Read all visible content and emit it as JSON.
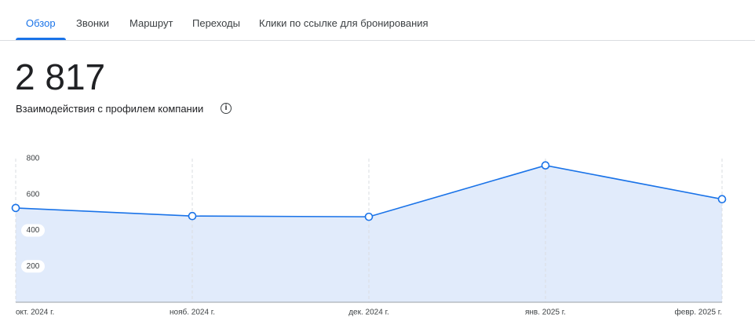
{
  "tabs": [
    "Обзор",
    "Звонки",
    "Маршрут",
    "Переходы",
    "Клики по ссылке для бронирования"
  ],
  "metric": {
    "value": "2 817",
    "label": "Взаимодействия с профилем компании"
  },
  "chart_data": {
    "type": "area",
    "categories": [
      "окт. 2024 г.",
      "нояб. 2024 г.",
      "дек. 2024 г.",
      "янв. 2025 г.",
      "февр. 2025 г."
    ],
    "values": [
      525,
      480,
      476,
      762,
      574
    ],
    "color": "#1a73e8",
    "fill": "#e1ebfb",
    "ylim": [
      0,
      800
    ],
    "yticks": [
      200,
      400,
      600,
      800
    ],
    "grid": true
  }
}
